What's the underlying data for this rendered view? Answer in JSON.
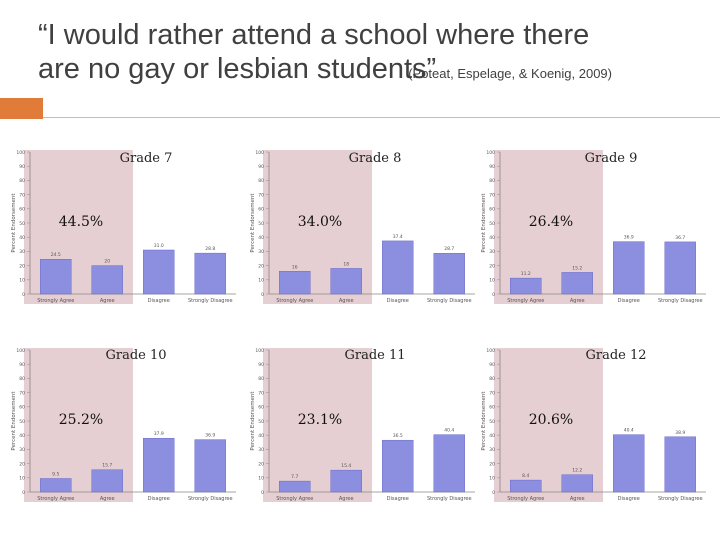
{
  "title": {
    "main_line1": "“I would rather attend a school where there",
    "main_line2": "are no gay or lesbian students”",
    "citation": "(Poteat, Espelage, & Koenig, 2009)"
  },
  "colors": {
    "accent": "#e07b39",
    "highlight": "#e6cfd2",
    "bar": "#8c8ee0",
    "bar_stroke": "#5a5cc4"
  },
  "chart_data": [
    {
      "type": "bar",
      "grade_label": "Grade 7",
      "annotation": "44.5%",
      "categories": [
        "Strongly Agree",
        "Agree",
        "Disagree",
        "Strongly Disagree"
      ],
      "values": [
        24.5,
        20,
        31,
        28.8
      ],
      "value_labels": [
        "24.5",
        "20",
        "31.0",
        "28.8"
      ],
      "ylabel": "Percent Endorsement",
      "ylim": [
        0,
        100
      ],
      "yticks": [
        0,
        10,
        20,
        30,
        40,
        50,
        60,
        70,
        80,
        90,
        100
      ]
    },
    {
      "type": "bar",
      "grade_label": "Grade 8",
      "annotation": "34.0%",
      "categories": [
        "Strongly Agree",
        "Agree",
        "Disagree",
        "Strongly Disagree"
      ],
      "values": [
        16,
        18,
        37.4,
        28.7
      ],
      "value_labels": [
        "16",
        "18",
        "37.4",
        "28.7"
      ],
      "ylabel": "Percent Endorsement",
      "ylim": [
        0,
        100
      ],
      "yticks": [
        0,
        10,
        20,
        30,
        40,
        50,
        60,
        70,
        80,
        90,
        100
      ]
    },
    {
      "type": "bar",
      "grade_label": "Grade 9",
      "annotation": "26.4%",
      "categories": [
        "Strongly Agree",
        "Agree",
        "Disagree",
        "Strongly Disagree"
      ],
      "values": [
        11.2,
        15.2,
        36.9,
        36.7
      ],
      "value_labels": [
        "11.2",
        "15.2",
        "36.9",
        "36.7"
      ],
      "ylabel": "Percent Endorsement",
      "ylim": [
        0,
        100
      ],
      "yticks": [
        0,
        10,
        20,
        30,
        40,
        50,
        60,
        70,
        80,
        90,
        100
      ]
    },
    {
      "type": "bar",
      "grade_label": "Grade 10",
      "annotation": "25.2%",
      "categories": [
        "Strongly Agree",
        "Agree",
        "Disagree",
        "Strongly Disagree"
      ],
      "values": [
        9.5,
        15.7,
        37.9,
        36.9
      ],
      "value_labels": [
        "9.5",
        "15.7",
        "37.9",
        "36.9"
      ],
      "ylabel": "Percent Endorsement",
      "ylim": [
        0,
        100
      ],
      "yticks": [
        0,
        10,
        20,
        30,
        40,
        50,
        60,
        70,
        80,
        90,
        100
      ]
    },
    {
      "type": "bar",
      "grade_label": "Grade 11",
      "annotation": "23.1%",
      "categories": [
        "Strongly Agree",
        "Agree",
        "Disagree",
        "Strongly Disagree"
      ],
      "values": [
        7.7,
        15.4,
        36.5,
        40.4
      ],
      "value_labels": [
        "7.7",
        "15.4",
        "36.5",
        "40.4"
      ],
      "ylabel": "Percent Endorsement",
      "ylim": [
        0,
        100
      ],
      "yticks": [
        0,
        10,
        20,
        30,
        40,
        50,
        60,
        70,
        80,
        90,
        100
      ]
    },
    {
      "type": "bar",
      "grade_label": "Grade 12",
      "annotation": "20.6%",
      "categories": [
        "Strongly Agree",
        "Agree",
        "Disagree",
        "Strongly Disagree"
      ],
      "values": [
        8.4,
        12.2,
        40.4,
        38.9
      ],
      "value_labels": [
        "8.4",
        "12.2",
        "40.4",
        "38.9"
      ],
      "ylabel": "Percent Endorsement",
      "ylim": [
        0,
        100
      ],
      "yticks": [
        0,
        10,
        20,
        30,
        40,
        50,
        60,
        70,
        80,
        90,
        100
      ]
    }
  ]
}
